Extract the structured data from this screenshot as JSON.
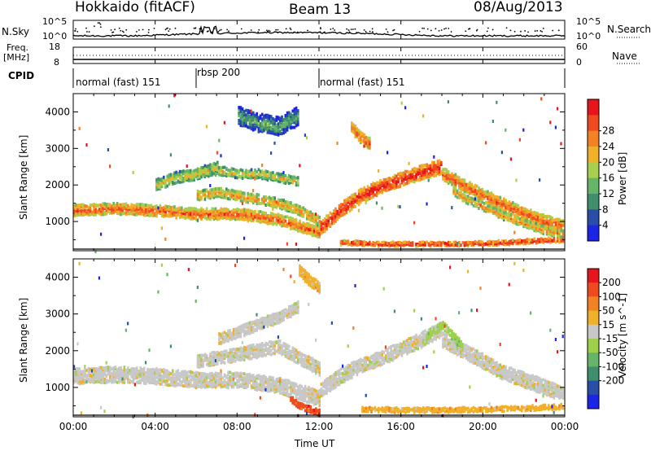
{
  "header": {
    "station": "Hokkaido (fitACF)",
    "beam": "Beam 13",
    "date": "08/Aug/2013"
  },
  "noise_panel": {
    "left_label": "N.Sky",
    "left_ticks": [
      "10^5",
      "10^0"
    ],
    "right_ticks": [
      "10^5",
      "10^0"
    ],
    "right_label": "N.Search"
  },
  "freq_panel": {
    "left_label_1": "Freq.",
    "left_label_2": "[MHz]",
    "left_ticks": [
      "18",
      "8"
    ],
    "right_ticks": [
      "60",
      "0"
    ],
    "right_label": "Nave"
  },
  "cpid": {
    "label": "CPID",
    "segments": [
      {
        "name": "normal (fast) 151",
        "start_hour": 0,
        "end_hour": 6
      },
      {
        "name": "rbsp 200",
        "start_hour": 6,
        "end_hour": 12
      },
      {
        "name": "normal (fast) 151",
        "start_hour": 12,
        "end_hour": 24
      }
    ]
  },
  "chart_data": [
    {
      "type": "heatmap",
      "name": "power",
      "ylabel": "Slant Range [km]",
      "xlim": [
        0,
        24
      ],
      "ylim": [
        200,
        4500
      ],
      "y_ticks": [
        1000,
        2000,
        3000,
        4000
      ],
      "colorbar": {
        "label": "Power [dB]",
        "ticks": [
          "4",
          "8",
          "12",
          "16",
          "20",
          "24",
          "28"
        ],
        "colors": [
          "#1c24e6",
          "#2a4ea8",
          "#3f8f6f",
          "#66b36a",
          "#a8cf4d",
          "#f0b02a",
          "#f28224",
          "#ef4a1f",
          "#e8141b"
        ]
      },
      "bands": [
        {
          "hours": [
            0,
            2,
            4,
            6,
            8,
            10,
            12
          ],
          "ranges": [
            1300,
            1350,
            1300,
            1200,
            1200,
            1050,
            700
          ],
          "width": 300,
          "level": 7
        },
        {
          "hours": [
            6,
            7,
            8,
            9,
            10,
            11,
            12
          ],
          "ranges": [
            1700,
            1800,
            1700,
            1600,
            1500,
            1300,
            1000
          ],
          "width": 260,
          "level": 6
        },
        {
          "hours": [
            6,
            7,
            8,
            9,
            10,
            11
          ],
          "ranges": [
            2300,
            2400,
            2300,
            2300,
            2200,
            2100
          ],
          "width": 240,
          "level": 5
        },
        {
          "hours": [
            12,
            13,
            14,
            15,
            16,
            17,
            18
          ],
          "ranges": [
            800,
            1300,
            1700,
            1950,
            2150,
            2350,
            2500
          ],
          "width": 380,
          "level": 8
        },
        {
          "hours": [
            18,
            19,
            20,
            21,
            22,
            23,
            24
          ],
          "ranges": [
            2300,
            2000,
            1700,
            1450,
            1200,
            1000,
            850
          ],
          "width": 340,
          "level": 7
        },
        {
          "hours": [
            18.5,
            19,
            20,
            21,
            22,
            23,
            24
          ],
          "ranges": [
            1850,
            1650,
            1400,
            1150,
            950,
            750,
            650
          ],
          "width": 220,
          "level": 6
        },
        {
          "hours": [
            13,
            14,
            15,
            16,
            17,
            18,
            19,
            20,
            21,
            22,
            23,
            24
          ],
          "ranges": [
            420,
            400,
            380,
            380,
            380,
            380,
            380,
            400,
            420,
            450,
            480,
            500
          ],
          "width": 120,
          "level": 8
        },
        {
          "hours": [
            13.5,
            14,
            14.5
          ],
          "ranges": [
            3600,
            3300,
            3100
          ],
          "width": 300,
          "level": 7
        },
        {
          "hours": [
            8,
            9,
            10,
            11
          ],
          "ranges": [
            3900,
            3700,
            3600,
            3900
          ],
          "width": 500,
          "level": 3
        },
        {
          "hours": [
            4,
            5,
            6,
            7
          ],
          "ranges": [
            2000,
            2200,
            2300,
            2500
          ],
          "width": 300,
          "level": 5
        }
      ]
    },
    {
      "type": "heatmap",
      "name": "velocity",
      "xlabel": "Time UT",
      "ylabel": "Slant Range [km]",
      "xlim": [
        0,
        24
      ],
      "ylim": [
        200,
        4500
      ],
      "x_ticks": [
        "00:00",
        "04:00",
        "08:00",
        "12:00",
        "16:00",
        "20:00",
        "00:00"
      ],
      "y_ticks": [
        1000,
        2000,
        3000,
        4000
      ],
      "colorbar": {
        "label": "Velocity [m s^-1]",
        "ticks": [
          "200",
          "100",
          "50",
          "15",
          "-15",
          "-50",
          "-100",
          "-200"
        ],
        "colors": [
          "#1c24e6",
          "#2a4ea8",
          "#3f8f6f",
          "#66b36a",
          "#9ed04a",
          "#c8c8c8",
          "#f0b02a",
          "#f28224",
          "#ef4a1f",
          "#e8141b"
        ]
      },
      "bands": [
        {
          "hours": [
            0,
            2,
            4,
            6,
            8,
            10,
            12
          ],
          "ranges": [
            1300,
            1350,
            1300,
            1200,
            1200,
            1050,
            700
          ],
          "width": 420,
          "level": 5
        },
        {
          "hours": [
            6,
            7,
            8,
            9,
            10,
            11,
            12
          ],
          "ranges": [
            1700,
            1800,
            1900,
            2000,
            2100,
            1800,
            1500
          ],
          "width": 360,
          "level": 5
        },
        {
          "hours": [
            7,
            8,
            9,
            10,
            11
          ],
          "ranges": [
            2300,
            2500,
            2700,
            2900,
            3200
          ],
          "width": 300,
          "level": 5
        },
        {
          "hours": [
            12,
            13,
            14,
            15,
            16,
            17,
            18
          ],
          "ranges": [
            900,
            1300,
            1600,
            1800,
            2050,
            2300,
            2600
          ],
          "width": 400,
          "level": 5
        },
        {
          "hours": [
            18,
            19,
            20,
            21,
            22,
            23,
            24
          ],
          "ranges": [
            2300,
            2000,
            1700,
            1400,
            1200,
            1000,
            800
          ],
          "width": 400,
          "level": 5
        },
        {
          "hours": [
            17,
            17.5,
            18,
            18.5,
            19
          ],
          "ranges": [
            2200,
            2500,
            2700,
            2400,
            2100
          ],
          "width": 220,
          "level": 4
        },
        {
          "hours": [
            10.5,
            11,
            11.5,
            12
          ],
          "ranges": [
            700,
            500,
            400,
            300
          ],
          "width": 160,
          "level": 8
        },
        {
          "hours": [
            14,
            16,
            18,
            20,
            22,
            24
          ],
          "ranges": [
            400,
            380,
            380,
            400,
            430,
            480
          ],
          "width": 130,
          "level": 6
        },
        {
          "hours": [
            11,
            11.5,
            12
          ],
          "ranges": [
            4200,
            3900,
            3700
          ],
          "width": 300,
          "level": 6
        }
      ]
    }
  ],
  "x_axis": {
    "label": "Time UT",
    "ticks": [
      "00:00",
      "04:00",
      "08:00",
      "12:00",
      "16:00",
      "20:00",
      "00:00"
    ]
  }
}
